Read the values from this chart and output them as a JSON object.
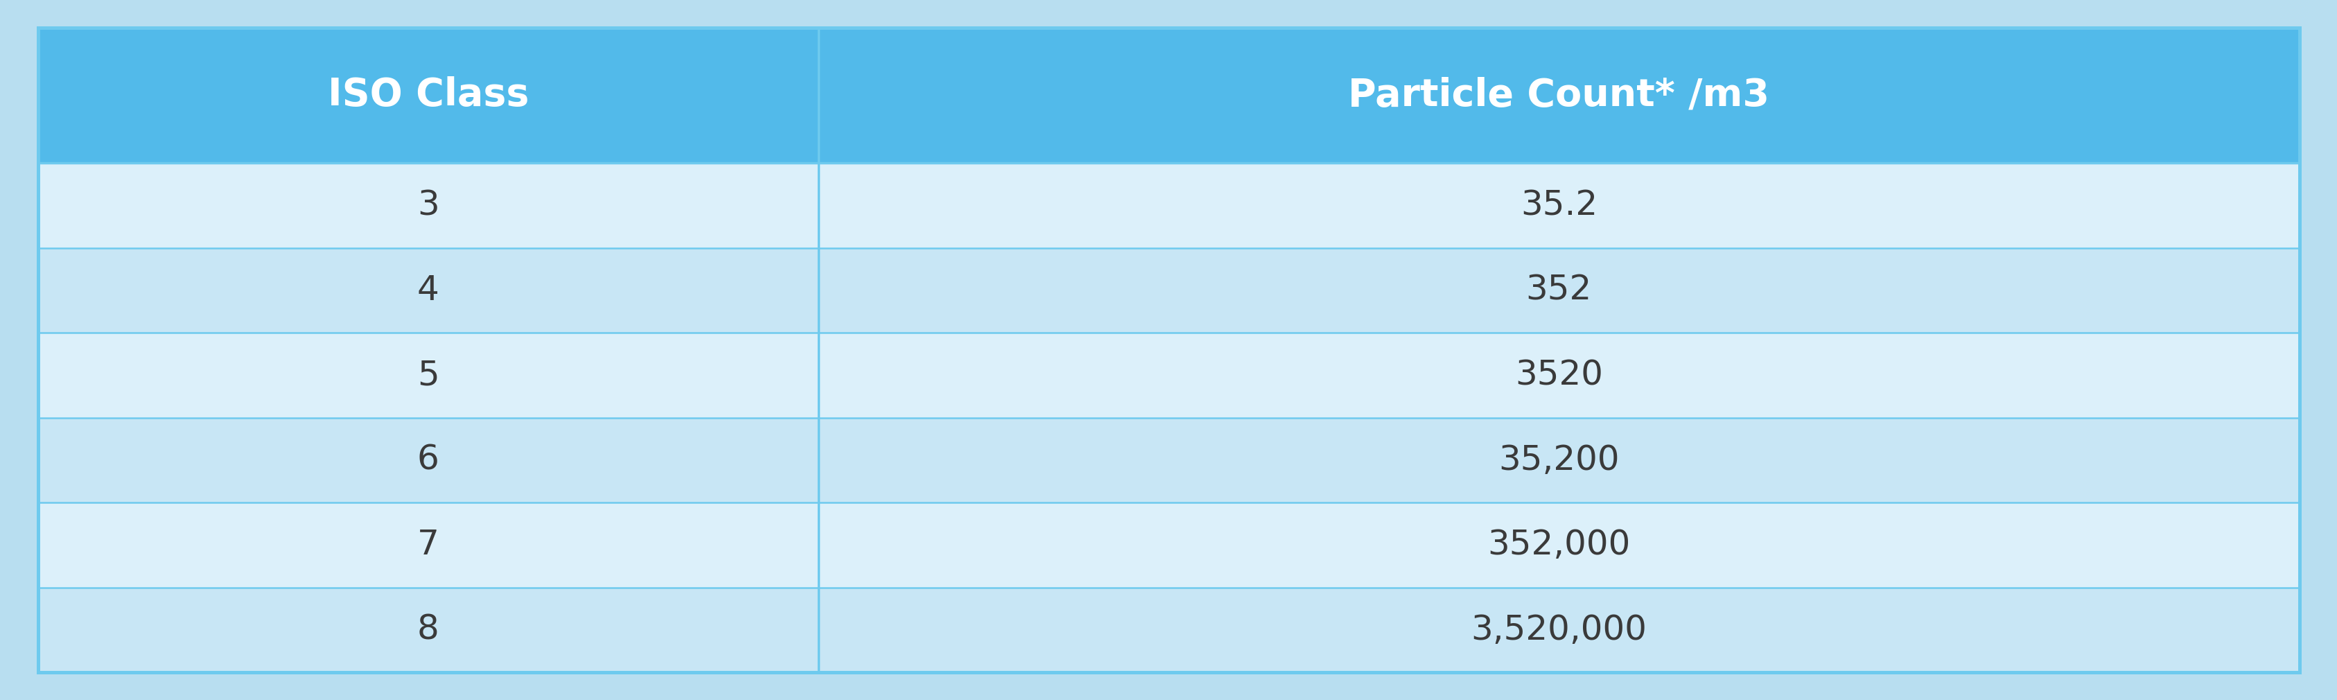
{
  "headers": [
    "ISO Class",
    "Particle Count* /m3"
  ],
  "rows": [
    [
      "3",
      "35.2"
    ],
    [
      "4",
      "352"
    ],
    [
      "5",
      "3520"
    ],
    [
      "6",
      "35,200"
    ],
    [
      "7",
      "352,000"
    ],
    [
      "8",
      "3,520,000"
    ]
  ],
  "header_bg_color": "#52BAEA",
  "header_text_color": "#FFFFFF",
  "row_colors": [
    "#DCF0FA",
    "#C8E6F5"
  ],
  "border_color": "#6ECAEE",
  "body_text_color": "#3A3A3A",
  "background_color": "#B8DEF0",
  "col_split": 0.345,
  "header_fontsize": 40,
  "row_fontsize": 36
}
